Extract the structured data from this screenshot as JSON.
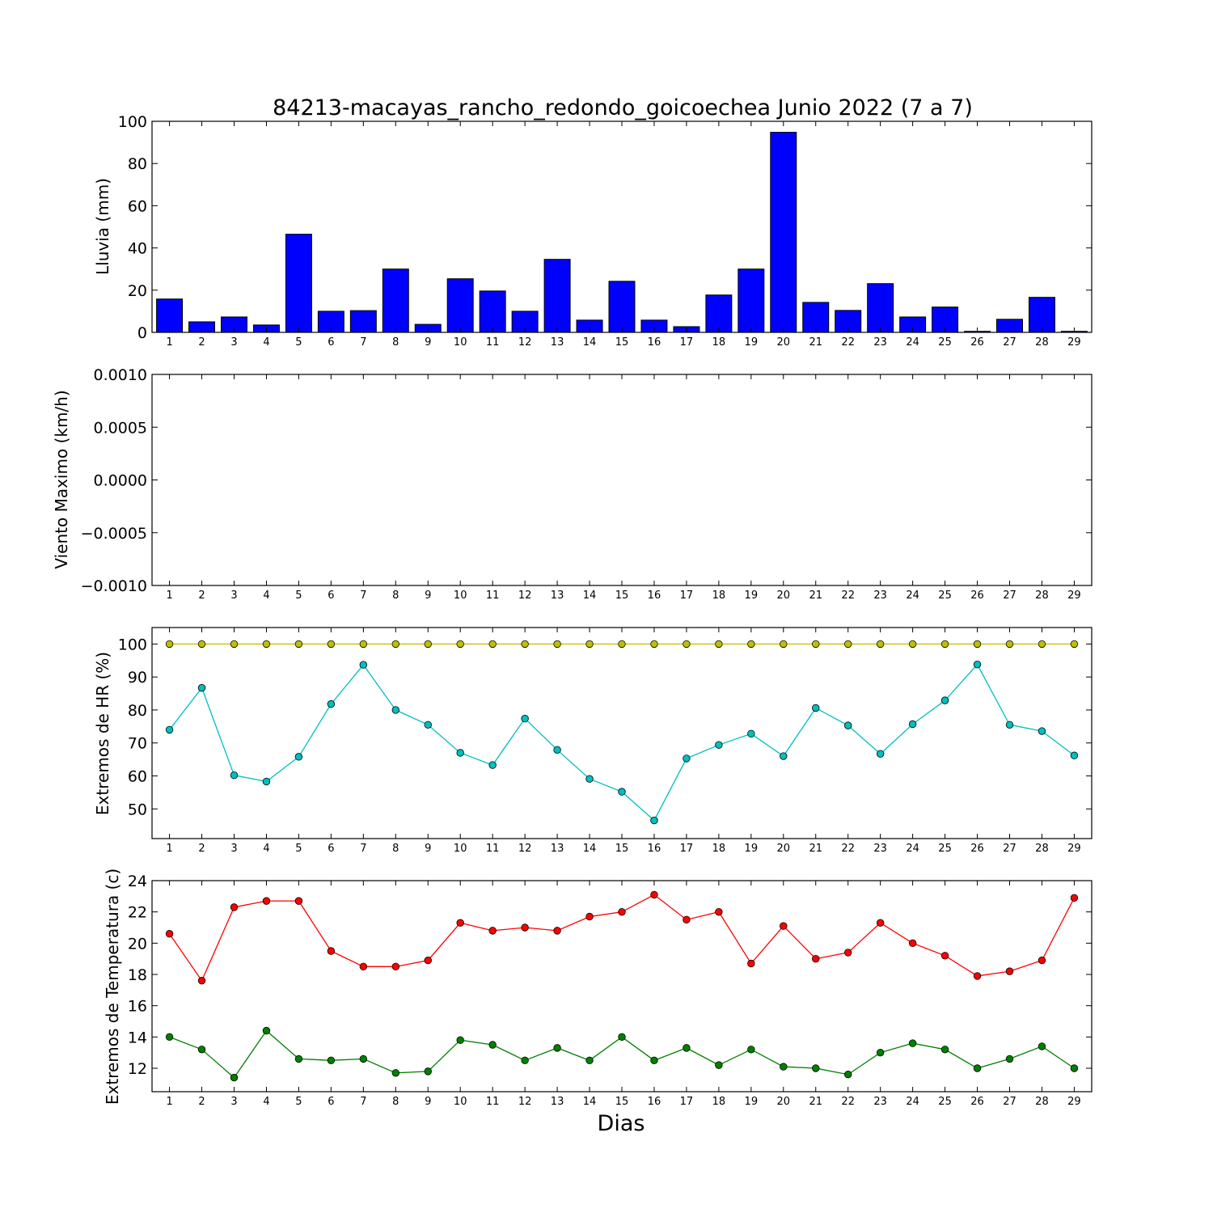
{
  "chart_data": [
    {
      "type": "bar",
      "title": "84213-macayas_rancho_redondo_goicoechea Junio 2022  (7 a 7)",
      "ylabel": "Lluvia (mm)",
      "xlabel": "",
      "categories": [
        "1",
        "2",
        "3",
        "4",
        "5",
        "6",
        "7",
        "8",
        "9",
        "10",
        "11",
        "12",
        "13",
        "14",
        "15",
        "16",
        "17",
        "18",
        "19",
        "20",
        "21",
        "22",
        "23",
        "24",
        "25",
        "26",
        "27",
        "28",
        "29"
      ],
      "values": [
        15.8,
        5.0,
        7.3,
        3.5,
        46.5,
        10.0,
        10.3,
        30.0,
        3.8,
        25.4,
        19.6,
        10.0,
        34.6,
        5.8,
        24.2,
        5.8,
        2.7,
        17.7,
        30.0,
        94.8,
        14.2,
        10.4,
        23.1,
        7.3,
        12.0,
        0.5,
        6.2,
        16.6,
        0.5
      ],
      "ylim": [
        0,
        100
      ],
      "yticks": [
        "0",
        "20",
        "40",
        "60",
        "80",
        "100"
      ],
      "bar_color": "#0000ff"
    },
    {
      "type": "line",
      "title": "",
      "ylabel": "Viento Maximo (km/h)",
      "xlabel": "",
      "categories": [
        "1",
        "2",
        "3",
        "4",
        "5",
        "6",
        "7",
        "8",
        "9",
        "10",
        "11",
        "12",
        "13",
        "14",
        "15",
        "16",
        "17",
        "18",
        "19",
        "20",
        "21",
        "22",
        "23",
        "24",
        "25",
        "26",
        "27",
        "28",
        "29"
      ],
      "series": [],
      "ylim": [
        -0.001,
        0.001
      ],
      "yticks": [
        "−0.0010",
        "−0.0005",
        "0.0000",
        "0.0005",
        "0.0010"
      ]
    },
    {
      "type": "line",
      "title": "",
      "ylabel": "Extremos de HR (%)",
      "xlabel": "",
      "categories": [
        "1",
        "2",
        "3",
        "4",
        "5",
        "6",
        "7",
        "8",
        "9",
        "10",
        "11",
        "12",
        "13",
        "14",
        "15",
        "16",
        "17",
        "18",
        "19",
        "20",
        "21",
        "22",
        "23",
        "24",
        "25",
        "26",
        "27",
        "28",
        "29"
      ],
      "series": [
        {
          "color": "#bfbf00",
          "values": [
            100,
            100,
            100,
            100,
            100,
            100,
            100,
            100,
            100,
            100,
            100,
            100,
            100,
            100,
            100,
            100,
            100,
            100,
            100,
            100,
            100,
            100,
            100,
            100,
            100,
            100,
            100,
            100,
            100
          ]
        },
        {
          "color": "#00bfbf",
          "values": [
            74,
            86.7,
            60.2,
            58.3,
            65.8,
            81.8,
            93.7,
            80,
            75.5,
            67,
            63.3,
            77.4,
            67.9,
            59.1,
            55.2,
            46.5,
            65.3,
            69.4,
            72.8,
            66,
            80.6,
            75.3,
            66.7,
            75.7,
            82.9,
            93.8,
            75.5,
            73.6,
            66.2
          ]
        }
      ],
      "ylim": [
        41,
        105
      ],
      "yticks": [
        "50",
        "60",
        "70",
        "80",
        "90",
        "100"
      ]
    },
    {
      "type": "line",
      "title": "",
      "ylabel": "Extremos de Temperatura (c)",
      "xlabel": "Dias",
      "categories": [
        "1",
        "2",
        "3",
        "4",
        "5",
        "6",
        "7",
        "8",
        "9",
        "10",
        "11",
        "12",
        "13",
        "14",
        "15",
        "16",
        "17",
        "18",
        "19",
        "20",
        "21",
        "22",
        "23",
        "24",
        "25",
        "26",
        "27",
        "28",
        "29"
      ],
      "series": [
        {
          "color": "#ff0000",
          "values": [
            20.6,
            17.6,
            22.3,
            22.7,
            22.7,
            19.5,
            18.5,
            18.5,
            18.9,
            21.3,
            20.8,
            21.0,
            20.8,
            21.7,
            22.0,
            23.1,
            21.5,
            22.0,
            18.7,
            21.1,
            19.0,
            19.4,
            21.3,
            20.0,
            19.2,
            17.9,
            18.2,
            18.9,
            22.9
          ]
        },
        {
          "color": "#008000",
          "values": [
            14.0,
            13.2,
            11.4,
            14.4,
            12.6,
            12.5,
            12.6,
            11.7,
            11.8,
            13.8,
            13.5,
            12.5,
            13.3,
            12.5,
            14.0,
            12.5,
            13.3,
            12.2,
            13.2,
            12.1,
            12.0,
            11.6,
            13.0,
            13.6,
            13.2,
            12.0,
            12.6,
            13.4,
            12.0
          ]
        }
      ],
      "ylim": [
        10.5,
        24
      ],
      "yticks": [
        "12",
        "14",
        "16",
        "18",
        "20",
        "22",
        "24"
      ]
    }
  ]
}
